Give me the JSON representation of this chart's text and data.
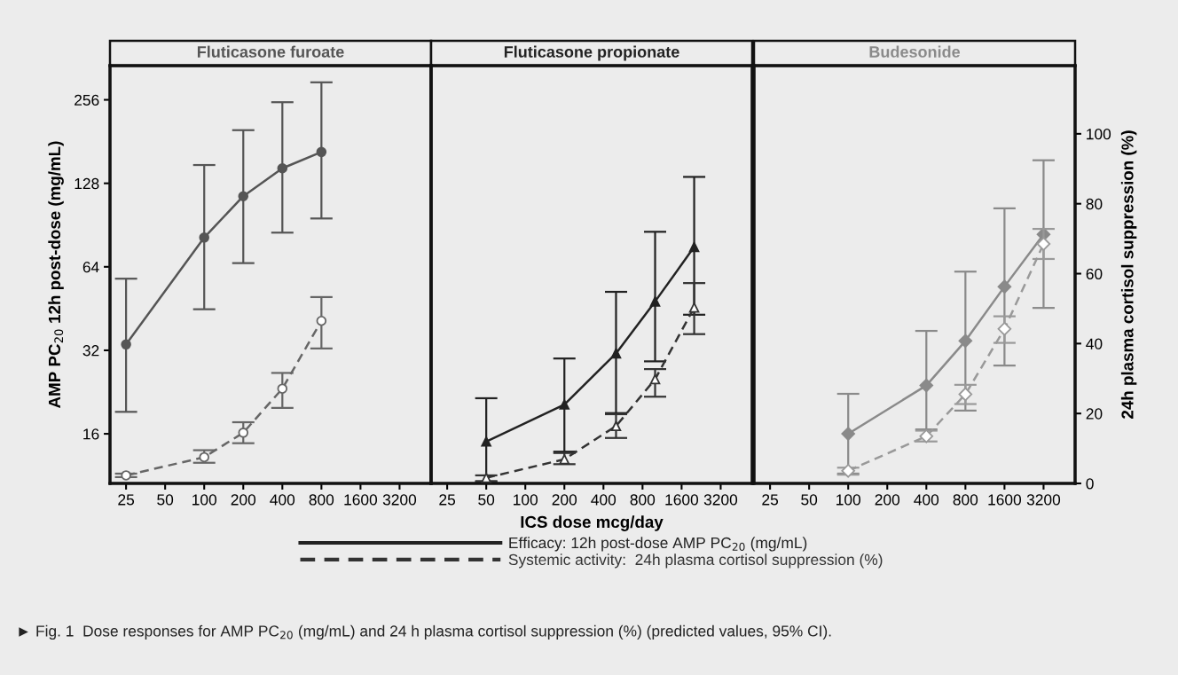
{
  "chart_data": [
    {
      "type": "line",
      "title": "Fluticasone furoate",
      "ylabel": "AMP PC$_{20}$ 12h post-dose (mg/mL)",
      "log": "xy",
      "xlim": [
        18.8,
        5600
      ],
      "xticks": [
        25,
        50,
        100,
        200,
        400,
        800,
        1600,
        3200
      ],
      "ylim": [
        10.6,
        340
      ],
      "yticks": [
        16,
        32,
        64,
        128,
        256
      ],
      "y2lim": [
        0,
        119.5
      ],
      "tick_labels": [
        "x",
        "y"
      ],
      "grid": false,
      "annotations": [
        "► Fig. 1  Dose responses for AMP PC$_{20}$ (mg/mL) and 24 h plasma cortisol suppression (%) (predicted values, 95% CI)."
      ],
      "series": [
        {
          "color": "#555555",
          "marker": "circle",
          "line_style": "solid",
          "x": [
            25,
            100,
            200,
            400,
            800
          ],
          "values": [
            33.6,
            81.6,
            115,
            145,
            166
          ],
          "errors": [
            [
              19.2,
              58
            ],
            [
              45,
              149
            ],
            [
              66,
              199
            ],
            [
              85,
              251
            ],
            [
              95.6,
              296
            ]
          ]
        },
        {
          "color": "#666666",
          "marker": "circle",
          "line_style": "dashed",
          "axis": "y2",
          "x": [
            25,
            100,
            200,
            400,
            800
          ],
          "values": [
            2.3,
            7.5,
            14.5,
            27.1,
            46.5
          ],
          "errors": [
            [
              1.8,
              2.8
            ],
            [
              5.9,
              9.5
            ],
            [
              11.5,
              17.5
            ],
            [
              21.6,
              31.6
            ],
            [
              38.6,
              53.3
            ]
          ]
        }
      ]
    },
    {
      "type": "line",
      "title": "Fluticasone propionate",
      "xlabel": "ICS dose mcg/day",
      "log": "xy",
      "xlim": [
        18.8,
        5600
      ],
      "xticks": [
        25,
        50,
        100,
        200,
        400,
        800,
        1600,
        3200
      ],
      "ylim": [
        10.6,
        340
      ],
      "y2lim": [
        0,
        119.5
      ],
      "tick_labels": [
        "x"
      ],
      "grid": false,
      "legend": "bottom",
      "series": [
        {
          "name": "Efficacy: 12h post-dose AMP PC$_{20}$ (mg/mL)",
          "color": "#222222",
          "marker": "triangle",
          "line_style": "solid",
          "x": [
            50,
            200,
            500,
            1000,
            2000
          ],
          "values": [
            15.0,
            20.4,
            31.2,
            48,
            75.5
          ],
          "errors": [
            [
              10.8,
              21.5
            ],
            [
              13.8,
              29.9
            ],
            [
              19,
              52
            ],
            [
              29.2,
              85.6
            ],
            [
              43,
              135
            ]
          ]
        },
        {
          "name": "Systemic activity:  24h plasma cortisol suppression (%)",
          "color": "#333333",
          "marker": "triangle",
          "line_style": "dashed",
          "axis": "y2",
          "x": [
            50,
            200,
            500,
            1000,
            2000
          ],
          "values": [
            1.6,
            6.9,
            16.4,
            29.8,
            50.3
          ],
          "errors": [
            [
              0.5,
              2.3
            ],
            [
              5.5,
              8.7
            ],
            [
              13.0,
              19.8
            ],
            [
              24.8,
              32.7
            ],
            [
              42.7,
              57.3
            ]
          ]
        }
      ]
    },
    {
      "type": "line",
      "title": "Budesonide",
      "y2label": "24h plasma cortisol suppression (%)",
      "log": "xy",
      "xlim": [
        18.8,
        5600
      ],
      "xticks": [
        25,
        50,
        100,
        200,
        400,
        800,
        1600,
        3200
      ],
      "ylim": [
        10.6,
        340
      ],
      "y2lim": [
        0,
        119.5
      ],
      "y2ticks": [
        0,
        20,
        40,
        60,
        80,
        100
      ],
      "tick_labels": [
        "x",
        "y2"
      ],
      "grid": false,
      "series": [
        {
          "color": "#8a8a8a",
          "marker": "diamond",
          "line_style": "solid",
          "x": [
            100,
            400,
            800,
            1600,
            3200
          ],
          "values": [
            16,
            23.9,
            34.6,
            54.3,
            83.8
          ],
          "errors": [
            [
              11.5,
              22.3
            ],
            [
              16.6,
              37.6
            ],
            [
              19.4,
              61.5
            ],
            [
              28.2,
              104
            ],
            [
              45.5,
              155
            ]
          ]
        },
        {
          "color": "#999999",
          "marker": "diamond",
          "line_style": "dashed",
          "axis": "y2",
          "x": [
            100,
            400,
            800,
            1600,
            3200
          ],
          "values": [
            3.6,
            13.5,
            25.5,
            44.2,
            68.5
          ],
          "errors": [
            [
              2.5,
              4.5
            ],
            [
              12.0,
              15.1
            ],
            [
              22.7,
              28.2
            ],
            [
              40.2,
              47.8
            ],
            [
              64.2,
              72.8
            ]
          ]
        }
      ]
    }
  ]
}
